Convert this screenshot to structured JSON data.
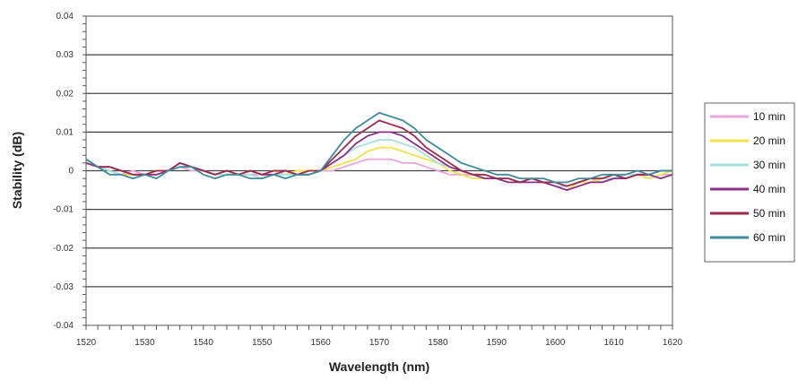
{
  "chart_data": {
    "type": "line",
    "title": "",
    "xlabel": "Wavelength (nm)",
    "ylabel": "Stability (dB)",
    "xlim": [
      1520,
      1620
    ],
    "ylim": [
      -0.04,
      0.04
    ],
    "x_ticks": [
      1520,
      1530,
      1540,
      1550,
      1560,
      1570,
      1580,
      1590,
      1600,
      1610,
      1620
    ],
    "x_tick_labels": [
      "1520",
      "1530",
      "1540",
      "1550",
      "1560",
      "1570",
      "1580",
      "1590",
      "1600",
      "1610",
      "1620"
    ],
    "y_ticks": [
      0.04,
      0.03,
      0.02,
      0.01,
      0,
      -0.01,
      -0.02,
      -0.03,
      -0.04
    ],
    "y_tick_labels": [
      "0.04",
      "0.03",
      "0.02",
      "0.01",
      "0",
      "-0.01",
      "-0.02",
      "-0.03",
      "-0.04"
    ],
    "grid": "horizontal",
    "legend_position": "right",
    "x": [
      1520,
      1522,
      1524,
      1526,
      1528,
      1530,
      1532,
      1534,
      1536,
      1538,
      1540,
      1542,
      1544,
      1546,
      1548,
      1550,
      1552,
      1554,
      1556,
      1558,
      1560,
      1562,
      1564,
      1566,
      1568,
      1570,
      1572,
      1574,
      1576,
      1578,
      1580,
      1582,
      1584,
      1586,
      1588,
      1590,
      1592,
      1594,
      1596,
      1598,
      1600,
      1602,
      1604,
      1606,
      1608,
      1610,
      1612,
      1614,
      1616,
      1618,
      1620
    ],
    "series": [
      {
        "name": "10 min",
        "color": "#e9a6d9",
        "values": [
          0.002,
          0.001,
          0.0,
          -0.001,
          0.0,
          -0.001,
          -0.001,
          0.0,
          0.001,
          0.0,
          0.0,
          -0.001,
          0.0,
          -0.001,
          -0.001,
          -0.001,
          0.0,
          0.0,
          -0.001,
          0.0,
          0.0,
          0.0,
          0.001,
          0.002,
          0.003,
          0.003,
          0.003,
          0.002,
          0.002,
          0.001,
          0.0,
          -0.001,
          -0.001,
          -0.001,
          -0.002,
          -0.002,
          -0.002,
          -0.003,
          -0.002,
          -0.003,
          -0.004,
          -0.004,
          -0.003,
          -0.002,
          -0.003,
          -0.002,
          -0.002,
          -0.001,
          -0.002,
          -0.001,
          -0.001
        ]
      },
      {
        "name": "20 min",
        "color": "#f2e24a",
        "values": [
          0.002,
          0.001,
          0.0,
          -0.001,
          -0.001,
          -0.001,
          0.0,
          0.0,
          0.002,
          0.001,
          0.0,
          -0.001,
          0.0,
          -0.001,
          0.0,
          -0.001,
          0.0,
          -0.001,
          0.0,
          0.0,
          0.0,
          0.001,
          0.002,
          0.003,
          0.005,
          0.006,
          0.006,
          0.005,
          0.004,
          0.003,
          0.002,
          0.0,
          -0.001,
          -0.002,
          -0.002,
          -0.002,
          -0.003,
          -0.003,
          -0.002,
          -0.003,
          -0.004,
          -0.005,
          -0.003,
          -0.003,
          -0.002,
          -0.002,
          -0.002,
          -0.001,
          -0.002,
          -0.001,
          0.0
        ]
      },
      {
        "name": "30 min",
        "color": "#a6e0dc",
        "values": [
          0.002,
          0.001,
          0.0,
          -0.001,
          -0.002,
          -0.001,
          -0.001,
          0.0,
          0.001,
          0.001,
          0.0,
          -0.001,
          -0.001,
          -0.001,
          -0.001,
          -0.002,
          -0.001,
          -0.001,
          -0.001,
          -0.001,
          0.0,
          0.002,
          0.004,
          0.006,
          0.007,
          0.008,
          0.008,
          0.007,
          0.006,
          0.004,
          0.002,
          0.001,
          0.0,
          -0.001,
          -0.001,
          -0.002,
          -0.002,
          -0.003,
          -0.003,
          -0.003,
          -0.004,
          -0.004,
          -0.003,
          -0.002,
          -0.002,
          -0.002,
          -0.001,
          -0.001,
          -0.001,
          0.0,
          0.0
        ]
      },
      {
        "name": "40 min",
        "color": "#8a2f8a",
        "values": [
          0.002,
          0.001,
          0.001,
          0.0,
          -0.001,
          -0.001,
          -0.001,
          0.0,
          0.002,
          0.001,
          0.0,
          -0.001,
          0.0,
          -0.001,
          0.0,
          -0.001,
          -0.001,
          0.0,
          -0.001,
          -0.001,
          0.0,
          0.002,
          0.004,
          0.007,
          0.009,
          0.01,
          0.01,
          0.009,
          0.007,
          0.005,
          0.003,
          0.001,
          0.0,
          -0.001,
          -0.002,
          -0.002,
          -0.003,
          -0.003,
          -0.003,
          -0.003,
          -0.004,
          -0.005,
          -0.004,
          -0.003,
          -0.003,
          -0.002,
          -0.002,
          -0.001,
          -0.001,
          -0.002,
          -0.001
        ]
      },
      {
        "name": "50 min",
        "color": "#9c2a4a",
        "values": [
          0.003,
          0.001,
          0.001,
          0.0,
          -0.001,
          -0.001,
          0.0,
          0.0,
          0.002,
          0.001,
          0.0,
          -0.001,
          0.0,
          -0.001,
          0.0,
          -0.001,
          0.0,
          0.0,
          -0.001,
          0.0,
          0.0,
          0.003,
          0.006,
          0.009,
          0.011,
          0.013,
          0.012,
          0.011,
          0.009,
          0.006,
          0.004,
          0.002,
          0.0,
          -0.001,
          -0.001,
          -0.002,
          -0.002,
          -0.003,
          -0.002,
          -0.003,
          -0.003,
          -0.004,
          -0.003,
          -0.002,
          -0.002,
          -0.001,
          -0.002,
          -0.001,
          -0.001,
          0.0,
          0.0
        ]
      },
      {
        "name": "60 min",
        "color": "#3e8b99",
        "values": [
          0.003,
          0.001,
          -0.001,
          -0.001,
          -0.002,
          -0.001,
          -0.002,
          0.0,
          0.001,
          0.001,
          -0.001,
          -0.002,
          -0.001,
          -0.001,
          -0.002,
          -0.002,
          -0.001,
          -0.002,
          -0.001,
          -0.001,
          0.0,
          0.004,
          0.008,
          0.011,
          0.013,
          0.015,
          0.014,
          0.013,
          0.011,
          0.008,
          0.006,
          0.004,
          0.002,
          0.001,
          0.0,
          -0.001,
          -0.001,
          -0.002,
          -0.002,
          -0.002,
          -0.003,
          -0.003,
          -0.002,
          -0.002,
          -0.001,
          -0.001,
          -0.001,
          0.0,
          -0.001,
          0.0,
          0.0
        ]
      }
    ]
  }
}
